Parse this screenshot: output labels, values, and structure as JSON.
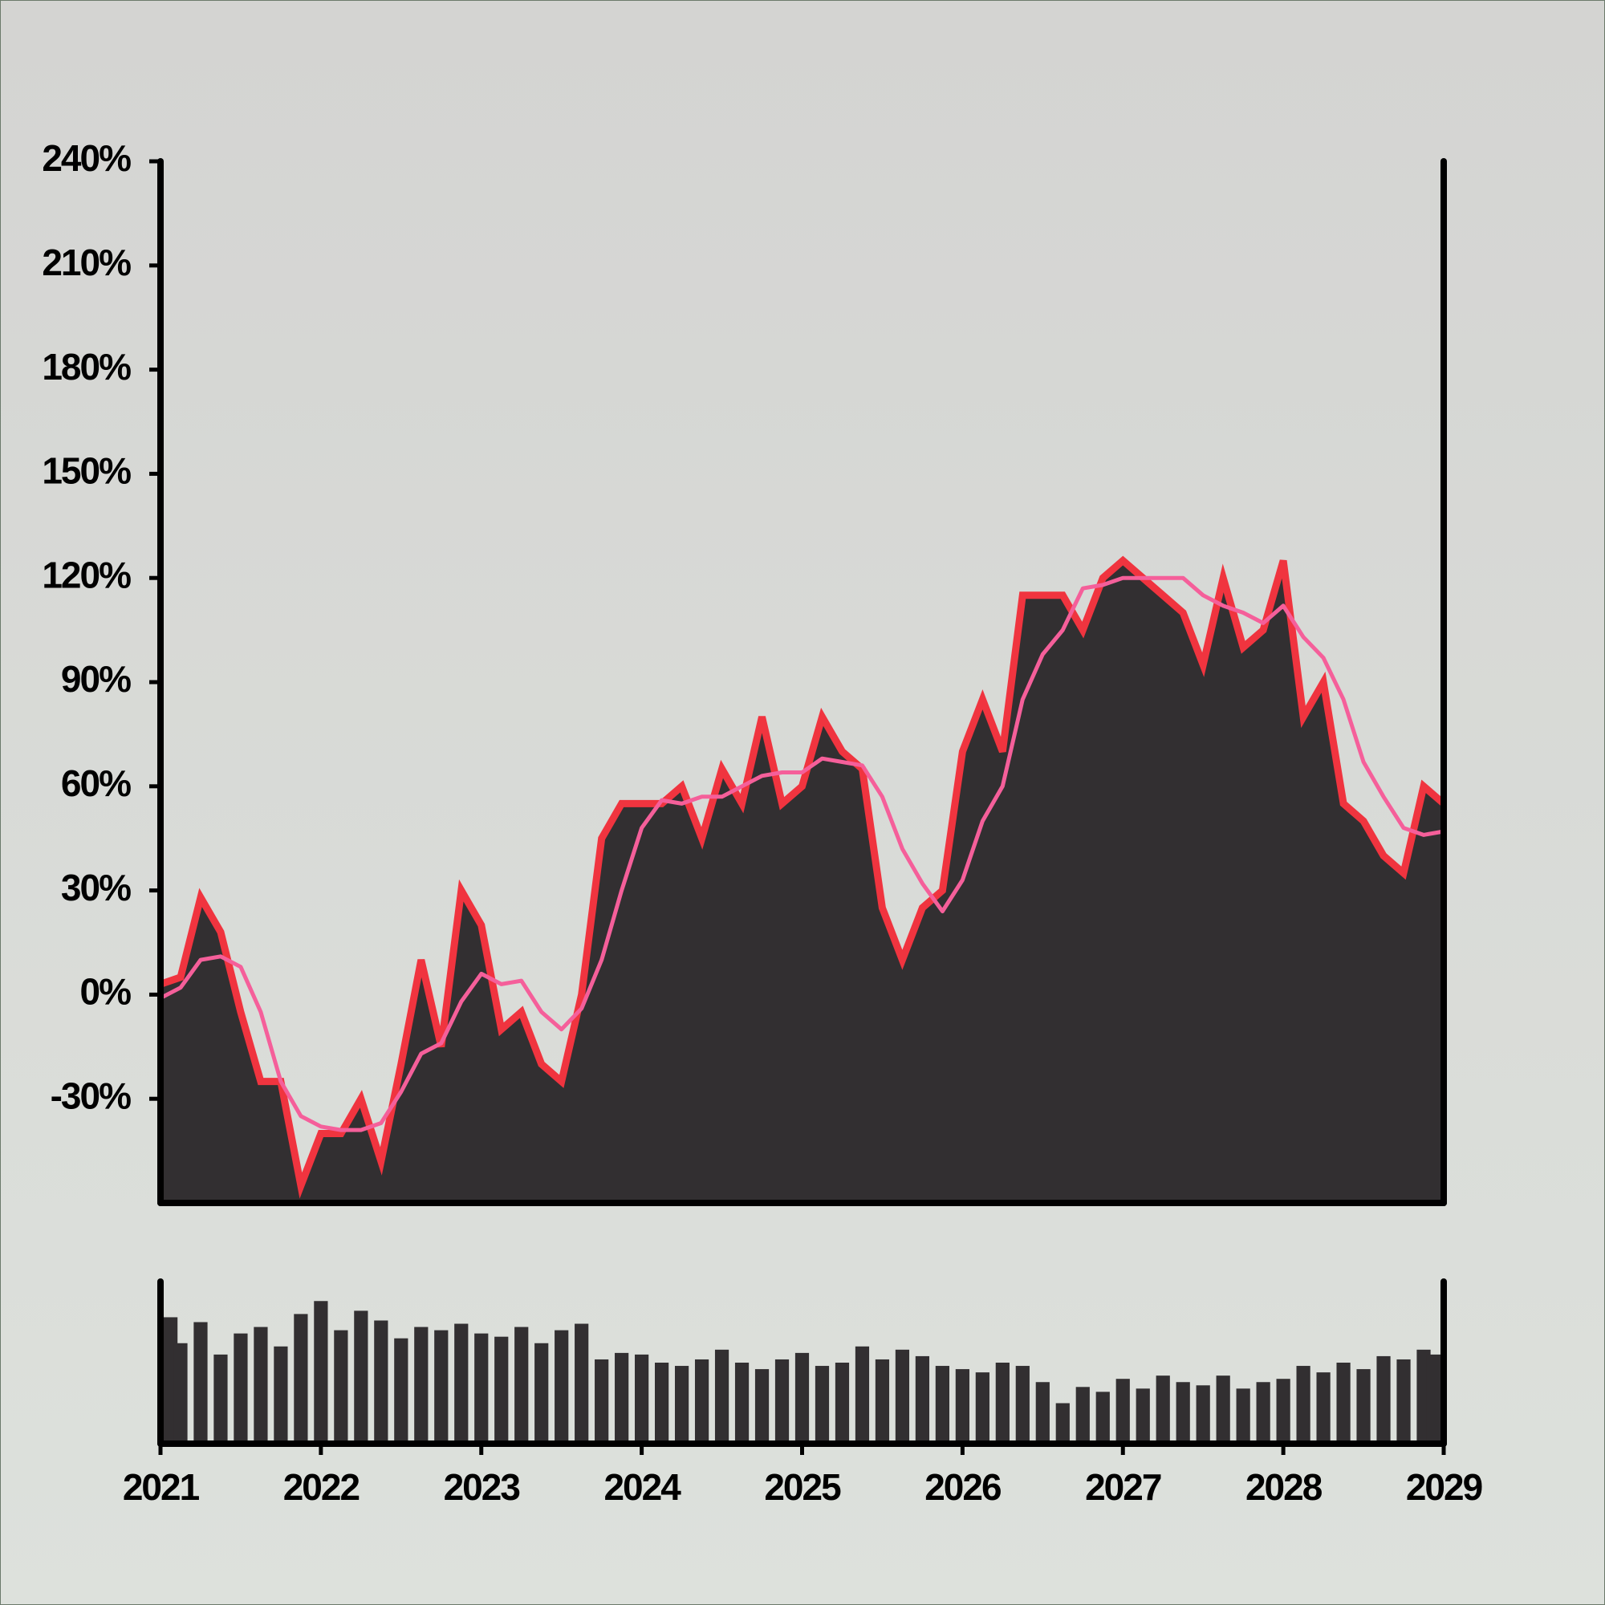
{
  "chart_data": {
    "type": "area",
    "x": [
      2021,
      2021.125,
      2021.25,
      2021.375,
      2021.5,
      2021.625,
      2021.75,
      2021.875,
      2022,
      2022.125,
      2022.25,
      2022.375,
      2022.5,
      2022.625,
      2022.75,
      2022.875,
      2023,
      2023.125,
      2023.25,
      2023.375,
      2023.5,
      2023.625,
      2023.75,
      2023.875,
      2024,
      2024.125,
      2024.25,
      2024.375,
      2024.5,
      2024.625,
      2024.75,
      2024.875,
      2025,
      2025.125,
      2025.25,
      2025.375,
      2025.5,
      2025.625,
      2025.75,
      2025.875,
      2026,
      2026.125,
      2026.25,
      2026.375,
      2026.5,
      2026.625,
      2026.75,
      2026.875,
      2027,
      2027.125,
      2027.25,
      2027.375,
      2027.5,
      2027.625,
      2027.75,
      2027.875,
      2028,
      2028.125,
      2028.25,
      2028.375,
      2028.5,
      2028.625,
      2028.75,
      2028.875,
      2029
    ],
    "series": [
      {
        "color": "#322f31",
        "outline": "#f0343f",
        "values": [
          3,
          5,
          28,
          18,
          -5,
          -25,
          -25,
          -55,
          -40,
          -40,
          -30,
          -48,
          -20,
          10,
          -15,
          30,
          20,
          -10,
          -5,
          -20,
          -25,
          0,
          45,
          55,
          55,
          55,
          60,
          45,
          65,
          55,
          80,
          55,
          60,
          80,
          70,
          65,
          25,
          10,
          25,
          30,
          70,
          85,
          70,
          115,
          115,
          115,
          105,
          120,
          125,
          120,
          115,
          110,
          95,
          120,
          100,
          105,
          125,
          80,
          90,
          55,
          50,
          40,
          35,
          60,
          55
        ]
      },
      {
        "color": "#f55f9a",
        "style": "line",
        "values": [
          -1,
          2,
          10,
          11,
          8,
          -5,
          -25,
          -35,
          -38,
          -39,
          -39,
          -37,
          -28,
          -17,
          -14,
          -2,
          6,
          3,
          4,
          -5,
          -10,
          -4,
          10,
          30,
          48,
          56,
          55,
          57,
          57,
          60,
          63,
          64,
          64,
          68,
          67,
          66,
          57,
          42,
          32,
          24,
          33,
          50,
          60,
          85,
          98,
          105,
          117,
          118,
          120,
          120,
          120,
          120,
          115,
          112,
          110,
          107,
          112,
          103,
          97,
          85,
          67,
          57,
          48,
          46,
          47
        ]
      },
      {
        "color": "#322f31",
        "style": "bar",
        "axis": "y2",
        "values": [
          78,
          62,
          75,
          55,
          68,
          72,
          60,
          80,
          88,
          70,
          82,
          76,
          65,
          72,
          70,
          74,
          68,
          66,
          72,
          62,
          70,
          74,
          52,
          56,
          55,
          50,
          48,
          52,
          58,
          50,
          46,
          52,
          56,
          48,
          50,
          60,
          52,
          58,
          54,
          48,
          46,
          44,
          50,
          48,
          38,
          25,
          35,
          32,
          40,
          34,
          42,
          38,
          36,
          42,
          34,
          38,
          40,
          48,
          44,
          50,
          46,
          54,
          52,
          58,
          55
        ]
      }
    ],
    "ylim": [
      -60,
      240
    ],
    "yticks": [
      {
        "value": -30,
        "label": "-30%"
      },
      {
        "value": 0,
        "label": "0%"
      },
      {
        "value": 30,
        "label": "30%"
      },
      {
        "value": 60,
        "label": "60%"
      },
      {
        "value": 90,
        "label": "90%"
      },
      {
        "value": 120,
        "label": "120%"
      },
      {
        "value": 150,
        "label": "150%"
      },
      {
        "value": 180,
        "label": "180%"
      },
      {
        "value": 210,
        "label": "210%"
      },
      {
        "value": 240,
        "label": "240%"
      }
    ],
    "xlim": [
      2021,
      2029
    ],
    "xticks": [
      2021,
      2022,
      2023,
      2024,
      2025,
      2026,
      2027,
      2028,
      2029
    ],
    "y2lim": [
      0,
      100
    ]
  }
}
